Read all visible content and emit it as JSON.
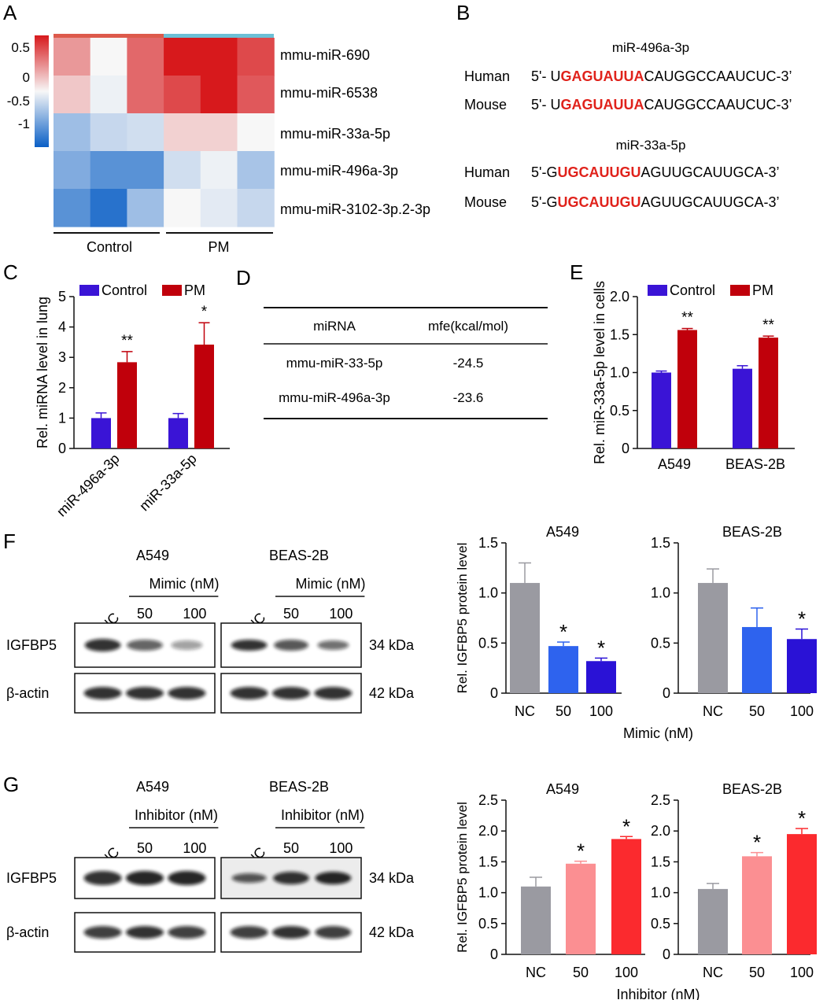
{
  "panel_labels": {
    "a": "A",
    "b": "B",
    "c": "C",
    "d": "D",
    "e": "E",
    "f": "F",
    "g": "G"
  },
  "heatmap": {
    "colorbar_ticks": [
      "0.5",
      "0",
      "-0.5",
      "-1"
    ],
    "colorbar_ticks_values": [
      0.5,
      0,
      -0.5,
      -1
    ],
    "colorbar_range": [
      -1.2,
      0.7
    ],
    "rows": [
      "mmu-miR-690",
      "mmu-miR-6538",
      "mmu-miR-33a-5p",
      "mmu-miR-496a-3p",
      "mmu-miR-3102-3p.2-3p"
    ],
    "values": [
      [
        0.3,
        0.0,
        0.45,
        0.72,
        0.8,
        0.55
      ],
      [
        0.15,
        -0.05,
        0.45,
        0.55,
        0.72,
        0.5
      ],
      [
        -0.45,
        -0.25,
        -0.2,
        0.12,
        0.12,
        0.0
      ],
      [
        -0.6,
        -0.8,
        -0.8,
        -0.2,
        -0.05,
        -0.4
      ],
      [
        -0.8,
        -1.05,
        -0.45,
        0.0,
        -0.1,
        -0.25
      ]
    ],
    "groups": [
      "Control",
      "PM"
    ],
    "group_colors": {
      "control": "#dd5a4b",
      "pm": "#6cc0d6"
    }
  },
  "sequences": {
    "blocks": [
      {
        "title": "miR-496a-3p",
        "rows": [
          {
            "species": "Human",
            "prefix": "5'- U",
            "seed": "GAGUAUUA",
            "suffix": "CAUGGCCAAUCUC-3’"
          },
          {
            "species": "Mouse",
            "prefix": "5'- U",
            "seed": "GAGUAUUA",
            "suffix": "CAUGGCCAAUCUC-3’"
          }
        ]
      },
      {
        "title": "miR-33a-5p",
        "rows": [
          {
            "species": "Human",
            "prefix": "5'-G",
            "seed": "UGCAUUGU",
            "suffix": "AGUUGCAUUGCA-3’"
          },
          {
            "species": "Mouse",
            "prefix": "5'-G",
            "seed": "UGCAUUGU",
            "suffix": "AGUUGCAUUGCA-3’"
          }
        ]
      }
    ],
    "seed_color": "#e0221b"
  },
  "table": {
    "headers": [
      "miRNA",
      "mfe(kcal/mol)"
    ],
    "rows": [
      [
        "mmu-miR-33-5p",
        "-24.5"
      ],
      [
        "mmu-miR-496a-3p",
        "-23.6"
      ]
    ]
  },
  "blots": {
    "f": {
      "cell_lines": [
        "A549",
        "BEAS-2B"
      ],
      "treatment": "Mimic (nM)",
      "control_lane": "Mi-NC",
      "doses": [
        "50",
        "100"
      ],
      "proteins": [
        "IGFBP5",
        "β-actin"
      ],
      "sizes": [
        "34 kDa",
        "42 kDa"
      ]
    },
    "g": {
      "cell_lines": [
        "A549",
        "BEAS-2B"
      ],
      "treatment": "Inhibitor (nM)",
      "control_lane": "IN-NC",
      "doses": [
        "50",
        "100"
      ],
      "proteins": [
        "IGFBP5",
        "β-actin"
      ],
      "sizes": [
        "34 kDa",
        "42 kDa"
      ]
    }
  },
  "chart_data": [
    {
      "id": "C",
      "type": "bar",
      "categories": [
        "miR-496a-3p",
        "miR-33a-5p"
      ],
      "series": [
        {
          "name": "Control",
          "color": "#3a14d6",
          "values": [
            1.0,
            1.0
          ],
          "errors": [
            0.17,
            0.15
          ]
        },
        {
          "name": "PM",
          "color": "#c0000b",
          "values": [
            2.84,
            3.42
          ],
          "errors": [
            0.35,
            0.72
          ]
        }
      ],
      "significance": [
        "**",
        "*"
      ],
      "ylabel": "Rel. miRNA level in lung",
      "ylim": [
        0,
        5
      ],
      "yticks": [
        "0",
        "1",
        "2",
        "3",
        "4",
        "5"
      ],
      "legend": "top"
    },
    {
      "id": "E",
      "type": "bar",
      "categories": [
        "A549",
        "BEAS-2B"
      ],
      "series": [
        {
          "name": "Control",
          "color": "#3a14d6",
          "values": [
            1.0,
            1.05
          ],
          "errors": [
            0.02,
            0.04
          ]
        },
        {
          "name": "PM",
          "color": "#c0000b",
          "values": [
            1.56,
            1.46
          ],
          "errors": [
            0.02,
            0.02
          ]
        }
      ],
      "significance": [
        "**",
        "**"
      ],
      "ylabel": "Rel. miR-33a-5p level in cells",
      "ylim": [
        0,
        2.0
      ],
      "yticks": [
        "0",
        "0.5",
        "1.0",
        "1.5",
        "2.0"
      ],
      "legend": "top"
    },
    {
      "id": "F",
      "type": "bar",
      "ylabel": "Rel. IGFBP5 protein level",
      "xlabel": "Mimic (nM)",
      "ylim": [
        0,
        1.5
      ],
      "yticks": [
        "0",
        "0.5",
        "1.0",
        "1.5"
      ],
      "categories": [
        "NC",
        "50",
        "100"
      ],
      "colors": [
        "#9a9aa1",
        "#2e63ee",
        "#2a12d6"
      ],
      "panels": [
        {
          "title": "A549",
          "values": [
            1.1,
            0.47,
            0.32
          ],
          "errors": [
            0.2,
            0.04,
            0.03
          ],
          "significance": [
            "",
            "*",
            "*"
          ]
        },
        {
          "title": "BEAS-2B",
          "values": [
            1.1,
            0.66,
            0.54
          ],
          "errors": [
            0.14,
            0.19,
            0.1
          ],
          "significance": [
            "",
            "",
            "*"
          ]
        }
      ]
    },
    {
      "id": "G",
      "type": "bar",
      "ylabel": "Rel. IGFBP5 protein level",
      "xlabel": "Inhibitor (nM)",
      "ylim": [
        0,
        2.5
      ],
      "yticks": [
        "0",
        "0.5",
        "1.0",
        "1.5",
        "2.0",
        "2.5"
      ],
      "categories": [
        "NC",
        "50",
        "100"
      ],
      "colors": [
        "#9a9aa1",
        "#fb8f92",
        "#fb2a2e"
      ],
      "panels": [
        {
          "title": "A549",
          "values": [
            1.1,
            1.47,
            1.87
          ],
          "errors": [
            0.15,
            0.04,
            0.04
          ],
          "significance": [
            "",
            "*",
            "*"
          ]
        },
        {
          "title": "BEAS-2B",
          "values": [
            1.06,
            1.59,
            1.95
          ],
          "errors": [
            0.09,
            0.06,
            0.09
          ],
          "significance": [
            "",
            "*",
            "*"
          ]
        }
      ]
    }
  ]
}
